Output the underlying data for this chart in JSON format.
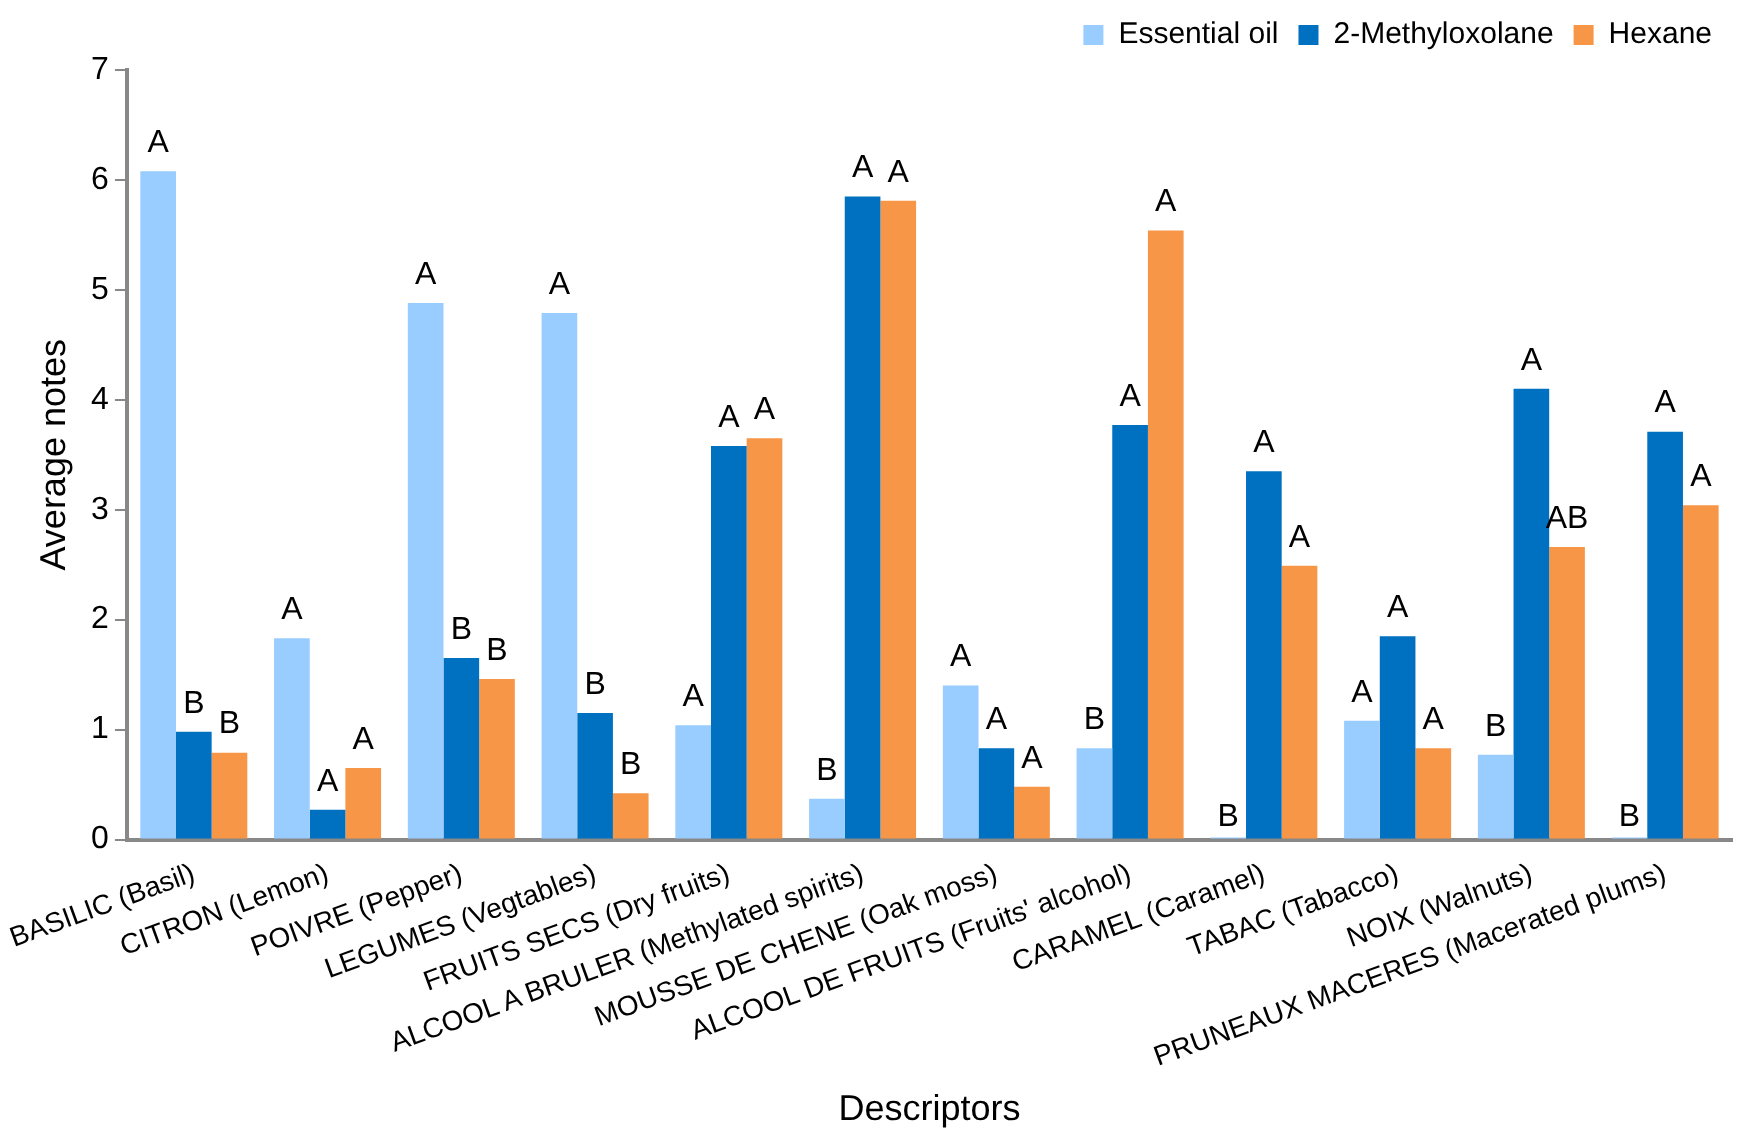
{
  "chart_data": {
    "type": "bar",
    "xlabel": "Descriptors",
    "ylabel": "Average notes",
    "categories": [
      "BASILIC (Basil)",
      "CITRON (Lemon)",
      "POIVRE (Pepper)",
      "LEGUMES (Vegtables)",
      "FRUITS SECS (Dry fruits)",
      "ALCOOL A BRULER (Methylated spirits)",
      "MOUSSE DE CHENE (Oak moss)",
      "ALCOOL DE FRUITS (Fruits' alcohol)",
      "CARAMEL (Caramel)",
      "TABAC (Tabacco)",
      "NOIX (Walnuts)",
      "PRUNEAUX MACERES (Macerated plums)"
    ],
    "series": [
      {
        "name": "Essential oil",
        "color": "#99ccff",
        "values": [
          6.08,
          1.83,
          4.88,
          4.79,
          1.04,
          0.37,
          1.4,
          0.83,
          0,
          1.08,
          0.77,
          0
        ],
        "value_labels": [
          "A",
          "A",
          "A",
          "A",
          "A",
          "B",
          "A",
          "B",
          "B",
          "A",
          "B",
          "B"
        ]
      },
      {
        "name": "2-Methyloxolane",
        "color": "#0070c0",
        "values": [
          0.98,
          0.27,
          1.65,
          1.15,
          3.58,
          5.85,
          0.83,
          3.77,
          3.35,
          1.85,
          4.1,
          3.71
        ],
        "value_labels": [
          "B",
          "A",
          "B",
          "B",
          "A",
          "A",
          "A",
          "A",
          "A",
          "A",
          "A",
          "A"
        ]
      },
      {
        "name": "Hexane",
        "color": "#f79646",
        "values": [
          0.79,
          0.65,
          1.46,
          0.42,
          3.65,
          5.81,
          0.48,
          5.54,
          2.49,
          0.83,
          2.66,
          3.04
        ],
        "value_labels": [
          "B",
          "A",
          "B",
          "B",
          "A",
          "A",
          "A",
          "A",
          "A",
          "A",
          "AB",
          "A"
        ]
      }
    ],
    "ylim": [
      0,
      7
    ],
    "yticks": [
      0,
      1,
      2,
      3,
      4,
      5,
      6,
      7
    ],
    "grid": false,
    "legend": "top"
  }
}
